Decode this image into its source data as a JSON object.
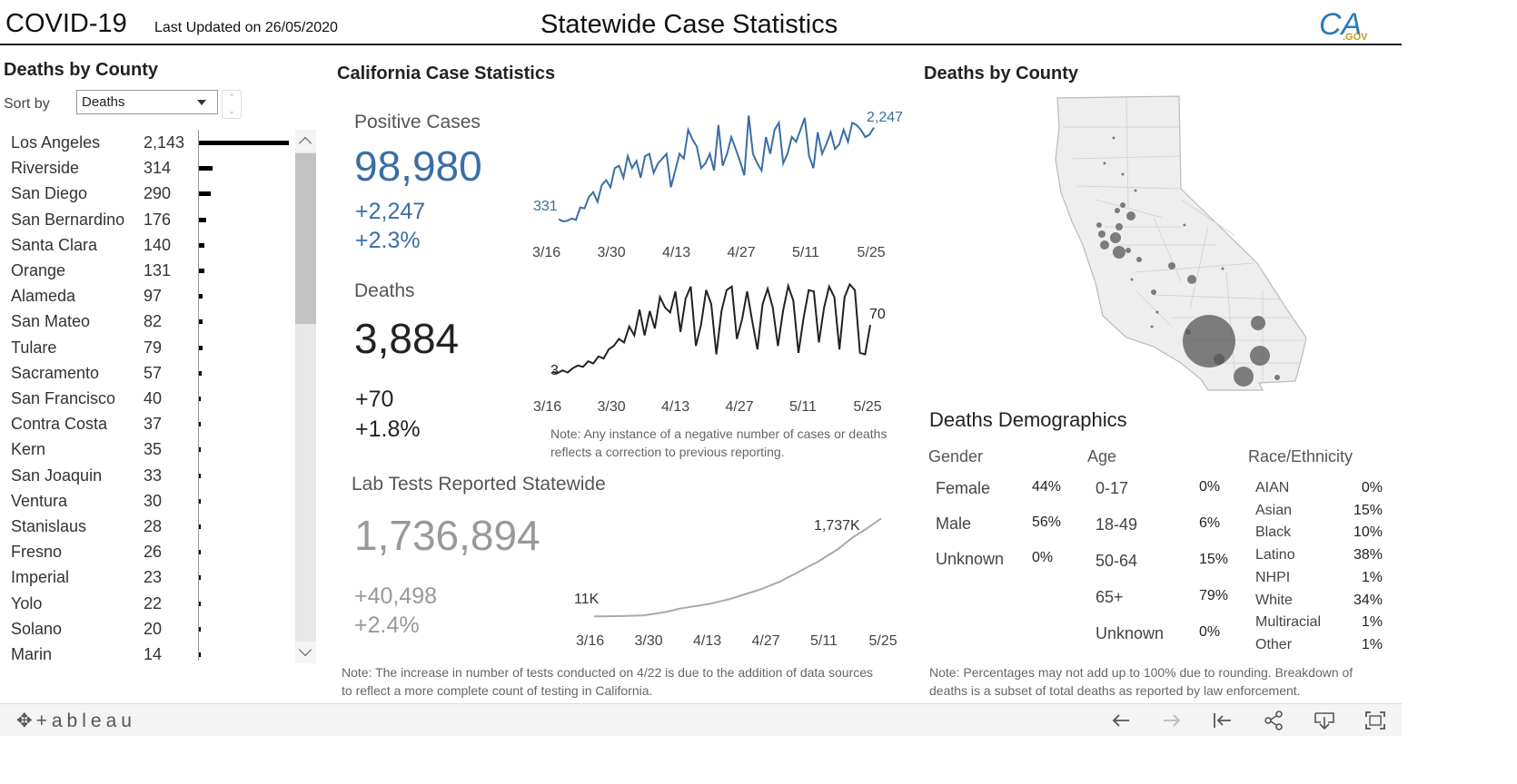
{
  "header": {
    "app_title": "COVID-19",
    "last_updated": "Last Updated on 26/05/2020",
    "page_title": "Statewide Case Statistics",
    "logo_text": "CA",
    "logo_sub": ".GOV"
  },
  "left_panel": {
    "title": "Deaths by County",
    "sort_label": "Sort by",
    "sort_value": "Deaths",
    "counties": [
      {
        "name": "Los Angeles",
        "value": "2,143",
        "n": 2143
      },
      {
        "name": "Riverside",
        "value": "314",
        "n": 314
      },
      {
        "name": "San Diego",
        "value": "290",
        "n": 290
      },
      {
        "name": "San Bernardino",
        "value": "176",
        "n": 176
      },
      {
        "name": "Santa Clara",
        "value": "140",
        "n": 140
      },
      {
        "name": "Orange",
        "value": "131",
        "n": 131
      },
      {
        "name": "Alameda",
        "value": "97",
        "n": 97
      },
      {
        "name": "San Mateo",
        "value": "82",
        "n": 82
      },
      {
        "name": "Tulare",
        "value": "79",
        "n": 79
      },
      {
        "name": "Sacramento",
        "value": "57",
        "n": 57
      },
      {
        "name": "San Francisco",
        "value": "40",
        "n": 40
      },
      {
        "name": "Contra Costa",
        "value": "37",
        "n": 37
      },
      {
        "name": "Kern",
        "value": "35",
        "n": 35
      },
      {
        "name": "San Joaquin",
        "value": "33",
        "n": 33
      },
      {
        "name": "Ventura",
        "value": "30",
        "n": 30
      },
      {
        "name": "Stanislaus",
        "value": "28",
        "n": 28
      },
      {
        "name": "Fresno",
        "value": "26",
        "n": 26
      },
      {
        "name": "Imperial",
        "value": "23",
        "n": 23
      },
      {
        "name": "Yolo",
        "value": "22",
        "n": 22
      },
      {
        "name": "Solano",
        "value": "20",
        "n": 20
      },
      {
        "name": "Marin",
        "value": "14",
        "n": 14
      }
    ]
  },
  "middle": {
    "title": "California Case Statistics",
    "positive": {
      "label": "Positive Cases",
      "total": "98,980",
      "delta": "+2,247",
      "pct": "+2.3%",
      "start_label": "331",
      "end_label": "2,247",
      "ticks": [
        "3/16",
        "3/30",
        "4/13",
        "4/27",
        "5/11",
        "5/25"
      ]
    },
    "deaths": {
      "label": "Deaths",
      "total": "3,884",
      "delta": "+70",
      "pct": "+1.8%",
      "start_label": "3",
      "end_label": "70",
      "ticks": [
        "3/16",
        "3/30",
        "4/13",
        "4/27",
        "5/11",
        "5/25"
      ]
    },
    "note1": "Note: Any instance of a negative number of cases or deaths reflects a correction to previous reporting.",
    "tests": {
      "label": "Lab Tests Reported Statewide",
      "total": "1,736,894",
      "delta": "+40,498",
      "pct": "+2.4%",
      "start_label": "11K",
      "end_label": "1,737K",
      "ticks": [
        "3/16",
        "3/30",
        "4/13",
        "4/27",
        "5/11",
        "5/25"
      ]
    },
    "note2": "Note: The increase in number of tests conducted on 4/22 is due to the addition of data sources to reflect a more complete count of testing in California."
  },
  "right": {
    "map_title": "Deaths by County",
    "demo_title": "Deaths Demographics",
    "gender": {
      "head": "Gender",
      "rows": [
        {
          "label": "Female",
          "pct": "44%"
        },
        {
          "label": "Male",
          "pct": "56%"
        },
        {
          "label": "Unknown",
          "pct": "0%"
        }
      ]
    },
    "age": {
      "head": "Age",
      "rows": [
        {
          "label": "0-17",
          "pct": "0%"
        },
        {
          "label": "18-49",
          "pct": "6%"
        },
        {
          "label": "50-64",
          "pct": "15%"
        },
        {
          "label": "65+",
          "pct": "79%"
        },
        {
          "label": "Unknown",
          "pct": "0%"
        }
      ]
    },
    "race": {
      "head": "Race/Ethnicity",
      "rows": [
        {
          "label": "AIAN",
          "pct": "0%"
        },
        {
          "label": "Asian",
          "pct": "15%"
        },
        {
          "label": "Black",
          "pct": "10%"
        },
        {
          "label": "Latino",
          "pct": "38%"
        },
        {
          "label": "NHPI",
          "pct": "1%"
        },
        {
          "label": "White",
          "pct": "34%"
        },
        {
          "label": "Multiracial",
          "pct": "1%"
        },
        {
          "label": "Other",
          "pct": "1%"
        }
      ]
    },
    "note": "Note: Percentages may not add up to 100% due to rounding. Breakdown of deaths is a subset of total deaths as reported by law enforcement."
  },
  "footer": {
    "brand": "+ableau",
    "icons": [
      "undo-icon",
      "redo-icon",
      "revert-icon",
      "share-icon",
      "download-icon",
      "fullscreen-icon"
    ]
  },
  "colors": {
    "positive": "#3a6ea5",
    "deaths": "#222222",
    "tests": "#9a9a9a",
    "map_fill": "#eeeeee",
    "bubble": "#555555"
  },
  "chart_data": [
    {
      "type": "line",
      "title": "Positive Cases",
      "x_ticks": [
        "3/16",
        "3/30",
        "4/13",
        "4/27",
        "5/11",
        "5/25"
      ],
      "series": [
        {
          "values": [
            331,
            290,
            300,
            350,
            320,
            580,
            560,
            800,
            900,
            700,
            1050,
            1150,
            1000,
            1400,
            1450,
            1200,
            1650,
            1400,
            1550,
            1200,
            1650,
            1700,
            1300,
            1500,
            1600,
            1700,
            1000,
            1350,
            1700,
            1600,
            2200,
            2000,
            1850,
            1400,
            1500,
            1700,
            1350,
            2300,
            1450,
            1700,
            2050,
            1800,
            1550,
            1250,
            2500,
            1700,
            1500,
            1350,
            2050,
            1700,
            2200,
            2350,
            1500,
            1700,
            2050,
            1950,
            2200,
            2450,
            1650,
            1400,
            2150,
            1700,
            1900,
            2150,
            1800,
            1900,
            2200,
            1950,
            2350,
            2300,
            2200,
            2050,
            2100,
            2247
          ]
        }
      ]
    },
    {
      "type": "line",
      "title": "Deaths",
      "x_ticks": [
        "3/16",
        "3/30",
        "4/13",
        "4/27",
        "5/11",
        "5/25"
      ],
      "series": [
        {
          "values": [
            3,
            1,
            5,
            2,
            8,
            12,
            10,
            18,
            15,
            25,
            22,
            35,
            40,
            50,
            45,
            68,
            55,
            92,
            55,
            90,
            65,
            110,
            95,
            88,
            118,
            60,
            108,
            125,
            40,
            70,
            120,
            100,
            28,
            90,
            120,
            125,
            50,
            78,
            118,
            75,
            35,
            100,
            122,
            95,
            40,
            90,
            126,
            105,
            30,
            80,
            120,
            118,
            45,
            95,
            125,
            110,
            35,
            110,
            128,
            120,
            30,
            28,
            70
          ]
        }
      ]
    },
    {
      "type": "line",
      "title": "Lab Tests Reported Statewide",
      "x_ticks": [
        "3/16",
        "3/30",
        "4/13",
        "4/27",
        "5/11",
        "5/25"
      ],
      "series": [
        {
          "values": [
            11,
            12,
            14,
            16,
            18,
            22,
            26,
            30,
            50,
            70,
            90,
            120,
            150,
            170,
            190,
            210,
            230,
            260,
            290,
            320,
            360,
            400,
            440,
            480,
            530,
            580,
            630,
            700,
            760,
            830,
            900,
            960,
            1040,
            1120,
            1200,
            1300,
            1400,
            1480,
            1560,
            1650,
            1737
          ]
        }
      ]
    }
  ]
}
